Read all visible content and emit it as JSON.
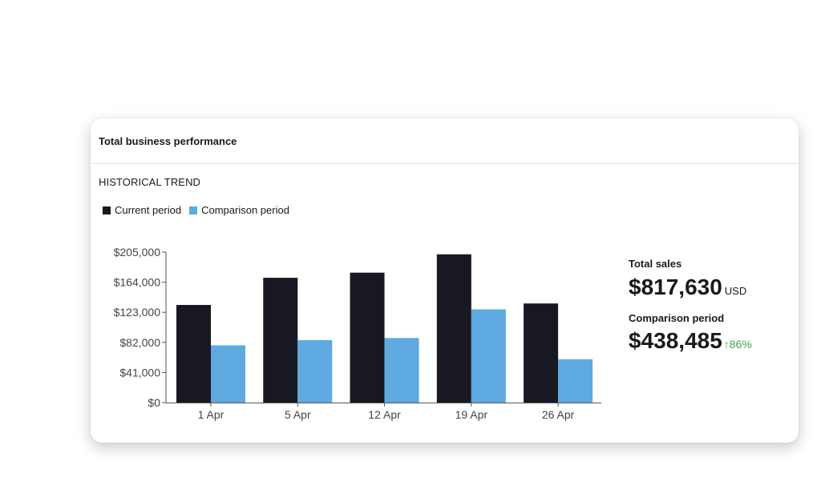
{
  "card": {
    "title": "Total business performance",
    "section_title": "HISTORICAL TREND"
  },
  "legend": {
    "current": "Current period",
    "comparison": "Comparison period"
  },
  "colors": {
    "current": "#181822",
    "comparison": "#5ea9e0",
    "positive": "#3aa655"
  },
  "kpis": {
    "total_label": "Total sales",
    "total_value": "$817,630",
    "total_unit": "USD",
    "comparison_label": "Comparison period",
    "comparison_value": "$438,485",
    "change_arrow": "↑",
    "change_value": "86%"
  },
  "chart_data": {
    "type": "bar",
    "categories": [
      "1 Apr",
      "5 Apr",
      "12 Apr",
      "19 Apr",
      "26 Apr"
    ],
    "series": [
      {
        "name": "Current period",
        "values": [
          133000,
          170000,
          177000,
          202000,
          135000
        ]
      },
      {
        "name": "Comparison period",
        "values": [
          78000,
          85000,
          88000,
          127000,
          59000
        ]
      }
    ],
    "yticks": [
      "$0",
      "$41,000",
      "$82,000",
      "$123,000",
      "$164,000",
      "$205,000"
    ],
    "ylim": [
      0,
      205000
    ],
    "legend_position": "top-left",
    "grid": false
  }
}
